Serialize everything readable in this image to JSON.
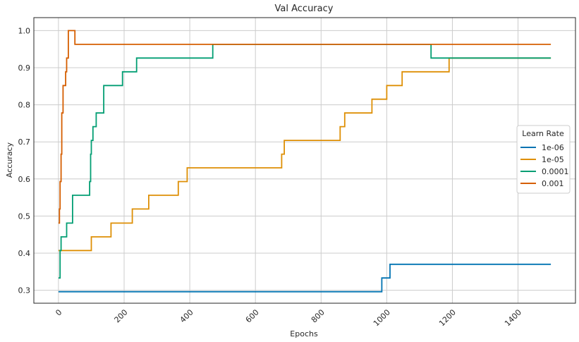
{
  "chart_data": {
    "type": "line",
    "title": "Val Accuracy",
    "xlabel": "Epochs",
    "ylabel": "Accuracy",
    "xlim": [
      -75,
      1575
    ],
    "ylim": [
      0.265,
      1.035
    ],
    "xticks": [
      0,
      200,
      400,
      600,
      800,
      1000,
      1200,
      1400
    ],
    "yticks": [
      0.3,
      0.4,
      0.5,
      0.6,
      0.7,
      0.8,
      0.9,
      1.0
    ],
    "grid": true,
    "legend": {
      "title": "Learn Rate",
      "placement": "center-right"
    },
    "series": [
      {
        "name": "1e-06",
        "color": "#0173b2",
        "points": [
          [
            0,
            0.296
          ],
          [
            985,
            0.296
          ],
          [
            985,
            0.333
          ],
          [
            1010,
            0.333
          ],
          [
            1010,
            0.37
          ],
          [
            1500,
            0.37
          ]
        ]
      },
      {
        "name": "1e-05",
        "color": "#de8f05",
        "points": [
          [
            0,
            0.407
          ],
          [
            100,
            0.407
          ],
          [
            100,
            0.444
          ],
          [
            160,
            0.444
          ],
          [
            160,
            0.481
          ],
          [
            225,
            0.481
          ],
          [
            225,
            0.519
          ],
          [
            275,
            0.519
          ],
          [
            275,
            0.556
          ],
          [
            365,
            0.556
          ],
          [
            365,
            0.593
          ],
          [
            392,
            0.593
          ],
          [
            392,
            0.63
          ],
          [
            680,
            0.63
          ],
          [
            680,
            0.667
          ],
          [
            688,
            0.667
          ],
          [
            688,
            0.704
          ],
          [
            858,
            0.704
          ],
          [
            858,
            0.741
          ],
          [
            872,
            0.741
          ],
          [
            872,
            0.778
          ],
          [
            955,
            0.778
          ],
          [
            955,
            0.815
          ],
          [
            1000,
            0.815
          ],
          [
            1000,
            0.852
          ],
          [
            1047,
            0.852
          ],
          [
            1047,
            0.889
          ],
          [
            1190,
            0.889
          ],
          [
            1190,
            0.926
          ],
          [
            1500,
            0.926
          ]
        ]
      },
      {
        "name": "0.0001",
        "color": "#029e73",
        "points": [
          [
            0,
            0.333
          ],
          [
            5,
            0.333
          ],
          [
            5,
            0.407
          ],
          [
            8,
            0.407
          ],
          [
            8,
            0.444
          ],
          [
            25,
            0.444
          ],
          [
            25,
            0.481
          ],
          [
            43,
            0.481
          ],
          [
            43,
            0.556
          ],
          [
            95,
            0.556
          ],
          [
            95,
            0.593
          ],
          [
            98,
            0.593
          ],
          [
            98,
            0.667
          ],
          [
            100,
            0.667
          ],
          [
            100,
            0.704
          ],
          [
            105,
            0.704
          ],
          [
            105,
            0.741
          ],
          [
            115,
            0.741
          ],
          [
            115,
            0.778
          ],
          [
            138,
            0.778
          ],
          [
            138,
            0.852
          ],
          [
            195,
            0.852
          ],
          [
            195,
            0.889
          ],
          [
            238,
            0.889
          ],
          [
            238,
            0.926
          ],
          [
            470,
            0.926
          ],
          [
            470,
            0.963
          ],
          [
            1135,
            0.963
          ],
          [
            1135,
            0.926
          ],
          [
            1500,
            0.926
          ]
        ]
      },
      {
        "name": "0.001",
        "color": "#d55e00",
        "points": [
          [
            0,
            0.481
          ],
          [
            3,
            0.481
          ],
          [
            3,
            0.519
          ],
          [
            5,
            0.519
          ],
          [
            5,
            0.593
          ],
          [
            8,
            0.593
          ],
          [
            8,
            0.667
          ],
          [
            10,
            0.667
          ],
          [
            10,
            0.778
          ],
          [
            14,
            0.778
          ],
          [
            14,
            0.852
          ],
          [
            22,
            0.852
          ],
          [
            22,
            0.889
          ],
          [
            25,
            0.889
          ],
          [
            25,
            0.926
          ],
          [
            30,
            0.926
          ],
          [
            30,
            1.0
          ],
          [
            50,
            1.0
          ],
          [
            50,
            0.963
          ],
          [
            1500,
            0.963
          ]
        ]
      }
    ]
  }
}
